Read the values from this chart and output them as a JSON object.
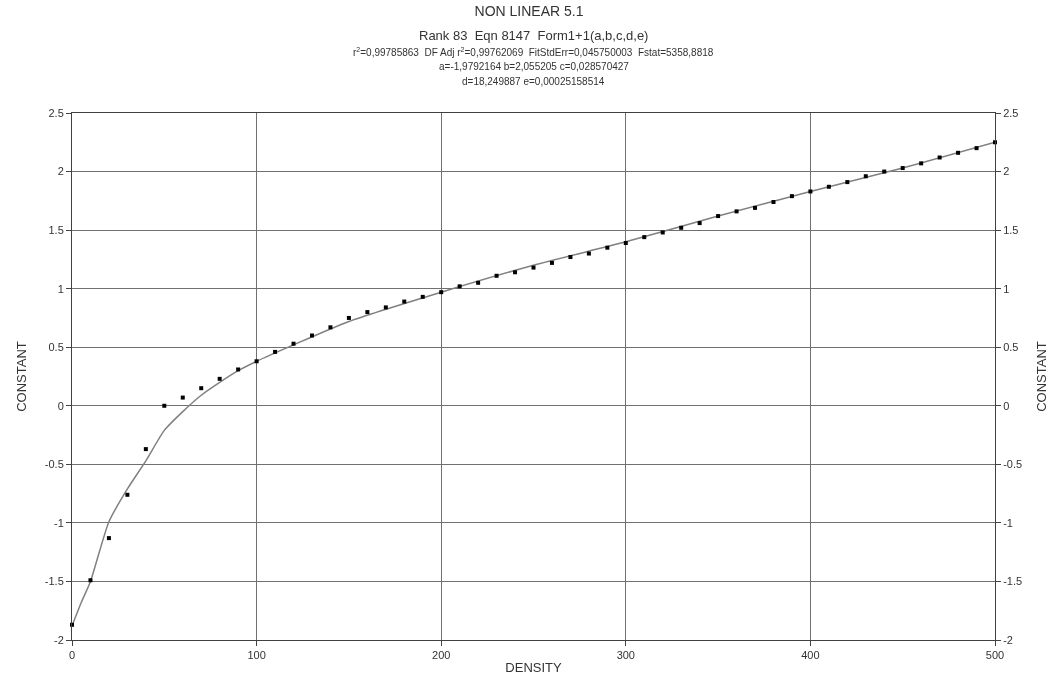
{
  "chart_data": {
    "type": "scatter",
    "title": "NON LINEAR 5.1",
    "subtitle": "Rank 83  Eqn 8147  Form1+1(a,b,c,d,e)\nr$^{2}$=0,99785863  DF Adj r$^{2}$=0,99762069  FitStdErr=0,045750003  Fstat=5358,8818\na=-1,9792164 b=2,055205 c=0,028570427\nd=18,249887 e=0,00025158514",
    "xlabel": "DENSITY",
    "ylabel": "CONSTANT",
    "y2label": "CONSTANT",
    "xlim": [
      0,
      500
    ],
    "xticks": [
      0,
      100,
      200,
      300,
      400,
      500
    ],
    "ylim": [
      -2,
      2.5
    ],
    "yticks": [
      -2,
      -1.5,
      -1,
      -0.5,
      0,
      0.5,
      1,
      1.5,
      2,
      2.5
    ],
    "y2lim": [
      -2,
      2.5
    ],
    "y2ticks": [
      -2,
      -1.5,
      -1,
      -0.5,
      0,
      0.5,
      1,
      1.5,
      2,
      2.5
    ],
    "grid": true,
    "series": [
      {
        "type": "line",
        "color": "#808080",
        "marker": "none",
        "line_style": "solid",
        "x": [
          0,
          5,
          10,
          20,
          30,
          40,
          50,
          60,
          70,
          80,
          90,
          100,
          120,
          150,
          200,
          250,
          300,
          350,
          400,
          450,
          500
        ],
        "values": [
          -1.88,
          -1.68,
          -1.5,
          -0.99,
          -0.71,
          -0.47,
          -0.21,
          -0.05,
          0.09,
          0.2,
          0.3,
          0.38,
          0.52,
          0.72,
          0.97,
          1.2,
          1.4,
          1.62,
          1.83,
          2.03,
          2.25
        ]
      },
      {
        "color": "#000000",
        "marker": "square",
        "x": [
          0,
          10,
          20,
          30,
          40,
          50,
          60,
          70,
          80,
          90,
          100,
          110,
          120,
          130,
          140,
          150,
          160,
          170,
          180,
          190,
          200,
          210,
          220,
          230,
          240,
          250,
          260,
          270,
          280,
          290,
          300,
          310,
          320,
          330,
          340,
          350,
          360,
          370,
          380,
          390,
          400,
          410,
          420,
          430,
          440,
          450,
          460,
          470,
          480,
          490,
          500
        ],
        "values": [
          -1.87,
          -1.49,
          -1.13,
          -0.76,
          -0.37,
          0.0,
          0.07,
          0.15,
          0.23,
          0.31,
          0.38,
          0.46,
          0.53,
          0.6,
          0.67,
          0.75,
          0.8,
          0.84,
          0.89,
          0.93,
          0.97,
          1.02,
          1.05,
          1.11,
          1.14,
          1.18,
          1.22,
          1.27,
          1.3,
          1.35,
          1.39,
          1.44,
          1.48,
          1.52,
          1.56,
          1.62,
          1.66,
          1.69,
          1.74,
          1.79,
          1.83,
          1.87,
          1.91,
          1.96,
          2.0,
          2.03,
          2.07,
          2.12,
          2.16,
          2.2,
          2.25
        ]
      }
    ]
  }
}
